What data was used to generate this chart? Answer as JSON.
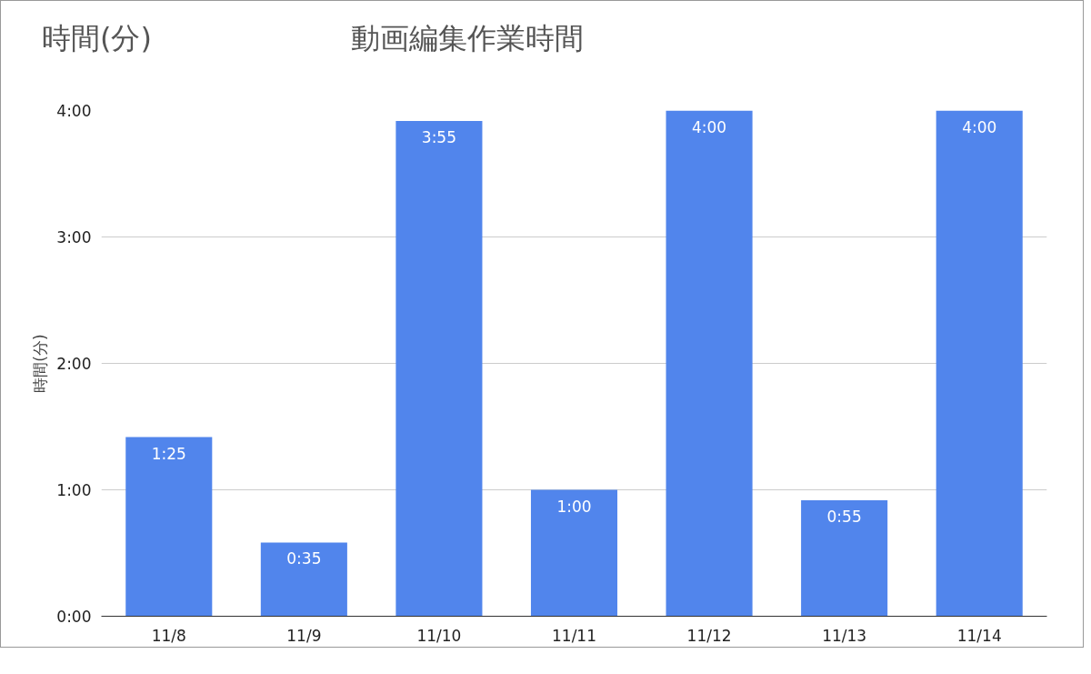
{
  "chart_data": {
    "type": "bar",
    "title": "動画編集作業時間",
    "ylabel": "時間(分)",
    "annotations": [
      "時間(分)"
    ],
    "categories": [
      "11/8",
      "11/9",
      "11/10",
      "11/11",
      "11/12",
      "11/13",
      "11/14"
    ],
    "values": [
      1.4167,
      0.5833,
      3.9167,
      1,
      4,
      0.9167,
      4
    ],
    "value_labels": [
      "1:25",
      "0:35",
      "3:55",
      "1:00",
      "4:00",
      "0:55",
      "4:00"
    ],
    "color": "#5185ec",
    "ylim": [
      0,
      4
    ],
    "yticks": [
      {
        "value": 0,
        "label": "0:00"
      },
      {
        "value": 1,
        "label": "1:00"
      },
      {
        "value": 2,
        "label": "2:00"
      },
      {
        "value": 3,
        "label": "3:00"
      },
      {
        "value": 4,
        "label": "4:00"
      }
    ],
    "grid": "y"
  }
}
